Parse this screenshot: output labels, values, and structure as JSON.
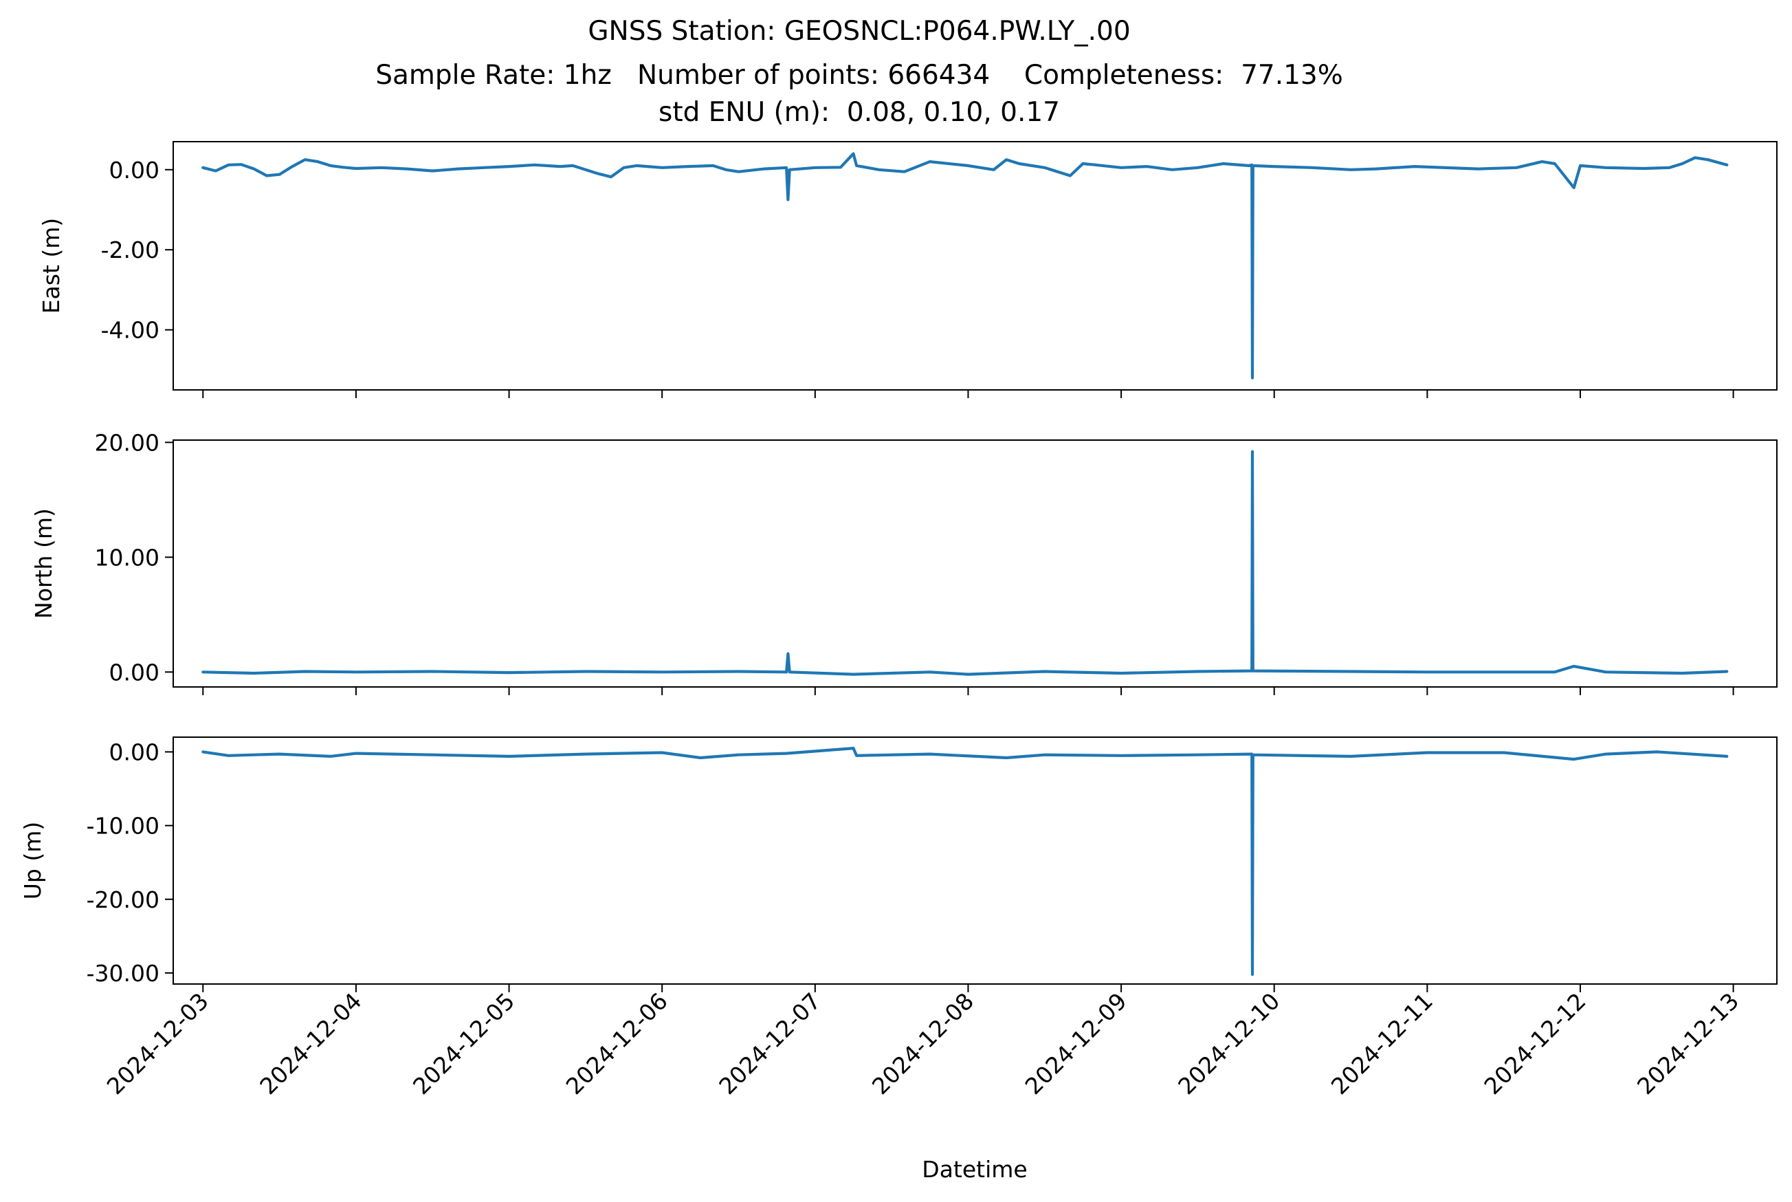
{
  "title": {
    "line1": "GNSS Station: GEOSNCL:P064.PW.LY_.00",
    "line2": "Sample Rate: 1hz   Number of points: 666434    Completeness:  77.13%",
    "line3": "std ENU (m):  0.08, 0.10, 0.17"
  },
  "chart_data": {
    "type": "line",
    "series_color": "#1f77b4",
    "xlabel": "Datetime",
    "x_tick_labels": [
      "2024-12-03",
      "2024-12-04",
      "2024-12-05",
      "2024-12-06",
      "2024-12-07",
      "2024-12-08",
      "2024-12-09",
      "2024-12-10",
      "2024-12-11",
      "2024-12-12",
      "2024-12-13"
    ],
    "xlim": [
      "2024-12-02T19:20",
      "2024-12-13T06:50"
    ],
    "grid": false,
    "legend": "none",
    "panels": [
      {
        "ylabel": "East (m)",
        "ylim": [
          -5.5,
          0.7
        ],
        "y_ticks": [
          0,
          -2,
          -4
        ],
        "y_tick_labels": [
          "0.00",
          "-2.00",
          "-4.00"
        ],
        "points": [
          [
            "2024-12-03T00:00",
            0.05
          ],
          [
            "2024-12-03T02:00",
            -0.03
          ],
          [
            "2024-12-03T04:00",
            0.12
          ],
          [
            "2024-12-03T06:00",
            0.13
          ],
          [
            "2024-12-03T08:00",
            0.02
          ],
          [
            "2024-12-03T10:00",
            -0.15
          ],
          [
            "2024-12-03T12:00",
            -0.12
          ],
          [
            "2024-12-03T14:00",
            0.08
          ],
          [
            "2024-12-03T16:00",
            0.25
          ],
          [
            "2024-12-03T18:00",
            0.2
          ],
          [
            "2024-12-03T20:00",
            0.1
          ],
          [
            "2024-12-03T22:00",
            0.06
          ],
          [
            "2024-12-04T00:00",
            0.03
          ],
          [
            "2024-12-04T04:00",
            0.05
          ],
          [
            "2024-12-04T08:00",
            0.02
          ],
          [
            "2024-12-04T12:00",
            -0.03
          ],
          [
            "2024-12-04T16:00",
            0.02
          ],
          [
            "2024-12-04T20:00",
            0.05
          ],
          [
            "2024-12-05T00:00",
            0.08
          ],
          [
            "2024-12-05T04:00",
            0.12
          ],
          [
            "2024-12-05T08:00",
            0.08
          ],
          [
            "2024-12-05T10:00",
            0.1
          ],
          [
            "2024-12-05T12:00",
            0.0
          ],
          [
            "2024-12-05T14:00",
            -0.1
          ],
          [
            "2024-12-05T16:00",
            -0.18
          ],
          [
            "2024-12-05T18:00",
            0.05
          ],
          [
            "2024-12-05T20:00",
            0.1
          ],
          [
            "2024-12-06T00:00",
            0.05
          ],
          [
            "2024-12-06T04:00",
            0.08
          ],
          [
            "2024-12-06T08:00",
            0.1
          ],
          [
            "2024-12-06T10:00",
            0.0
          ],
          [
            "2024-12-06T12:00",
            -0.05
          ],
          [
            "2024-12-06T16:00",
            0.02
          ],
          [
            "2024-12-06T19:30",
            0.05
          ],
          [
            "2024-12-06T19:45",
            -0.75
          ],
          [
            "2024-12-06T20:00",
            0.0
          ],
          [
            "2024-12-07T00:00",
            0.05
          ],
          [
            "2024-12-07T04:00",
            0.06
          ],
          [
            "2024-12-07T06:00",
            0.4
          ],
          [
            "2024-12-07T06:30",
            0.1
          ],
          [
            "2024-12-07T10:00",
            0.0
          ],
          [
            "2024-12-07T14:00",
            -0.05
          ],
          [
            "2024-12-07T18:00",
            0.2
          ],
          [
            "2024-12-08T00:00",
            0.1
          ],
          [
            "2024-12-08T04:00",
            0.0
          ],
          [
            "2024-12-08T06:00",
            0.25
          ],
          [
            "2024-12-08T08:00",
            0.15
          ],
          [
            "2024-12-08T12:00",
            0.05
          ],
          [
            "2024-12-08T16:00",
            -0.15
          ],
          [
            "2024-12-08T18:00",
            0.15
          ],
          [
            "2024-12-08T20:00",
            0.12
          ],
          [
            "2024-12-09T00:00",
            0.05
          ],
          [
            "2024-12-09T04:00",
            0.08
          ],
          [
            "2024-12-09T08:00",
            0.0
          ],
          [
            "2024-12-09T12:00",
            0.05
          ],
          [
            "2024-12-09T16:00",
            0.15
          ],
          [
            "2024-12-09T20:00",
            0.1
          ],
          [
            "2024-12-09T20:30",
            0.12
          ],
          [
            "2024-12-09T20:35",
            -5.2
          ],
          [
            "2024-12-09T20:40",
            0.1
          ],
          [
            "2024-12-10T00:00",
            0.08
          ],
          [
            "2024-12-10T06:00",
            0.05
          ],
          [
            "2024-12-10T12:00",
            0.0
          ],
          [
            "2024-12-10T16:00",
            0.02
          ],
          [
            "2024-12-10T22:00",
            0.08
          ],
          [
            "2024-12-11T08:00",
            0.02
          ],
          [
            "2024-12-11T14:00",
            0.05
          ],
          [
            "2024-12-11T18:00",
            0.2
          ],
          [
            "2024-12-11T20:00",
            0.15
          ],
          [
            "2024-12-11T23:00",
            -0.45
          ],
          [
            "2024-12-12T00:00",
            0.1
          ],
          [
            "2024-12-12T04:00",
            0.05
          ],
          [
            "2024-12-12T10:00",
            0.03
          ],
          [
            "2024-12-12T14:00",
            0.05
          ],
          [
            "2024-12-12T16:00",
            0.15
          ],
          [
            "2024-12-12T18:00",
            0.3
          ],
          [
            "2024-12-12T20:00",
            0.25
          ],
          [
            "2024-12-12T23:00",
            0.12
          ]
        ]
      },
      {
        "ylabel": "North (m)",
        "ylim": [
          -1.3,
          20.2
        ],
        "y_ticks": [
          0,
          10,
          20
        ],
        "y_tick_labels": [
          "0.00",
          "10.00",
          "20.00"
        ],
        "points": [
          [
            "2024-12-03T00:00",
            0.0
          ],
          [
            "2024-12-03T08:00",
            -0.1
          ],
          [
            "2024-12-03T16:00",
            0.05
          ],
          [
            "2024-12-04T00:00",
            0.0
          ],
          [
            "2024-12-04T12:00",
            0.05
          ],
          [
            "2024-12-05T00:00",
            -0.05
          ],
          [
            "2024-12-05T12:00",
            0.05
          ],
          [
            "2024-12-06T00:00",
            0.0
          ],
          [
            "2024-12-06T12:00",
            0.05
          ],
          [
            "2024-12-06T19:30",
            0.0
          ],
          [
            "2024-12-06T19:45",
            1.6
          ],
          [
            "2024-12-06T20:00",
            0.0
          ],
          [
            "2024-12-07T06:00",
            -0.2
          ],
          [
            "2024-12-07T18:00",
            0.0
          ],
          [
            "2024-12-08T00:00",
            -0.2
          ],
          [
            "2024-12-08T12:00",
            0.05
          ],
          [
            "2024-12-09T00:00",
            -0.1
          ],
          [
            "2024-12-09T12:00",
            0.05
          ],
          [
            "2024-12-09T20:30",
            0.1
          ],
          [
            "2024-12-09T20:35",
            19.2
          ],
          [
            "2024-12-09T20:40",
            0.1
          ],
          [
            "2024-12-10T12:00",
            0.05
          ],
          [
            "2024-12-11T00:00",
            0.0
          ],
          [
            "2024-12-11T20:00",
            0.0
          ],
          [
            "2024-12-11T23:00",
            0.5
          ],
          [
            "2024-12-12T04:00",
            0.0
          ],
          [
            "2024-12-12T16:00",
            -0.1
          ],
          [
            "2024-12-12T23:00",
            0.05
          ]
        ]
      },
      {
        "ylabel": "Up (m)",
        "ylim": [
          -31.5,
          2.0
        ],
        "y_ticks": [
          0,
          -10,
          -20,
          -30
        ],
        "y_tick_labels": [
          "0.00",
          "-10.00",
          "-20.00",
          "-30.00"
        ],
        "points": [
          [
            "2024-12-03T00:00",
            0.0
          ],
          [
            "2024-12-03T04:00",
            -0.5
          ],
          [
            "2024-12-03T12:00",
            -0.3
          ],
          [
            "2024-12-03T20:00",
            -0.6
          ],
          [
            "2024-12-04T00:00",
            -0.2
          ],
          [
            "2024-12-04T12:00",
            -0.4
          ],
          [
            "2024-12-05T00:00",
            -0.6
          ],
          [
            "2024-12-05T12:00",
            -0.3
          ],
          [
            "2024-12-06T00:00",
            -0.1
          ],
          [
            "2024-12-06T06:00",
            -0.8
          ],
          [
            "2024-12-06T12:00",
            -0.4
          ],
          [
            "2024-12-06T19:30",
            -0.2
          ],
          [
            "2024-12-07T06:00",
            0.5
          ],
          [
            "2024-12-07T06:30",
            -0.5
          ],
          [
            "2024-12-07T18:00",
            -0.3
          ],
          [
            "2024-12-08T06:00",
            -0.8
          ],
          [
            "2024-12-08T12:00",
            -0.4
          ],
          [
            "2024-12-09T00:00",
            -0.5
          ],
          [
            "2024-12-09T12:00",
            -0.4
          ],
          [
            "2024-12-09T20:30",
            -0.3
          ],
          [
            "2024-12-09T20:35",
            -30.2
          ],
          [
            "2024-12-09T20:40",
            -0.4
          ],
          [
            "2024-12-10T12:00",
            -0.6
          ],
          [
            "2024-12-11T00:00",
            -0.1
          ],
          [
            "2024-12-11T12:00",
            -0.1
          ],
          [
            "2024-12-11T23:00",
            -1.0
          ],
          [
            "2024-12-12T04:00",
            -0.3
          ],
          [
            "2024-12-12T12:00",
            0.0
          ],
          [
            "2024-12-12T23:00",
            -0.6
          ]
        ]
      }
    ]
  }
}
